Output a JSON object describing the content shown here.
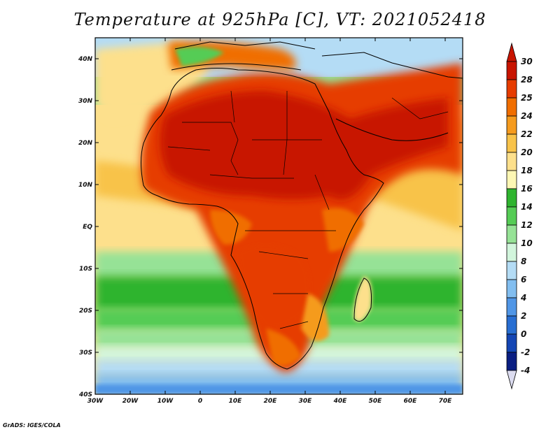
{
  "title": "Temperature at 925hPa [C], VT: 2021052418",
  "credit": "GrADS: IGES/COLA",
  "map": {
    "lon_ticks": [
      "30W",
      "20W",
      "10W",
      "0",
      "10E",
      "20E",
      "30E",
      "40E",
      "50E",
      "60E",
      "70E"
    ],
    "lat_ticks": [
      "40N",
      "30N",
      "20N",
      "10N",
      "EQ",
      "10S",
      "20S",
      "30S",
      "40S"
    ],
    "lon_range": [
      -30,
      75
    ],
    "lat_range": [
      -40,
      45
    ]
  },
  "colorbar": {
    "labels": [
      "30",
      "28",
      "25",
      "24",
      "22",
      "20",
      "18",
      "16",
      "14",
      "12",
      "10",
      "8",
      "6",
      "4",
      "2",
      "0",
      "-2",
      "-4"
    ],
    "colors": [
      "#c81400",
      "#e63c00",
      "#f06e00",
      "#f59b1e",
      "#f8c34a",
      "#fde08c",
      "#fdf7b4",
      "#2fb42f",
      "#55cc55",
      "#96e296",
      "#d2f5dc",
      "#b4dcf5",
      "#82bef0",
      "#5096e6",
      "#286ed2",
      "#1446b4",
      "#0a1e82"
    ]
  }
}
